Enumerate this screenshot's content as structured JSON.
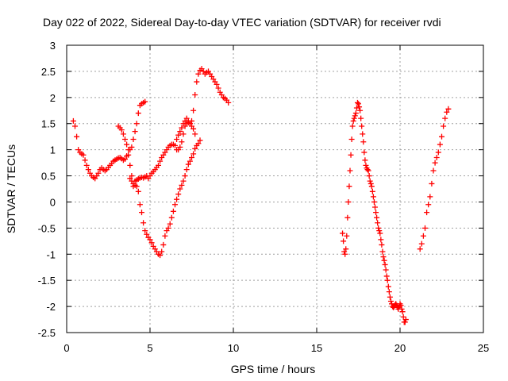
{
  "chart_data": {
    "type": "scatter",
    "title": "Day 022 of 2022, Sidereal Day-to-day VTEC variation (SDTVAR) for receiver rvdi",
    "xlabel": "GPS time / hours",
    "ylabel": "SDTVAR / TECUs",
    "xlim": [
      0,
      25
    ],
    "ylim": [
      -2.5,
      3
    ],
    "xticks": [
      "0",
      "5",
      "10",
      "15",
      "20",
      "25"
    ],
    "yticks": [
      "3",
      "2.5",
      "2",
      "1.5",
      "1",
      "0.5",
      "0",
      "-0.5",
      "-1",
      "-1.5",
      "-2",
      "-2.5"
    ],
    "grid": true,
    "marker": "plus",
    "color": "#ff0000",
    "series": [
      {
        "points": [
          [
            0.4,
            1.55
          ],
          [
            0.5,
            1.45
          ],
          [
            0.6,
            1.25
          ],
          [
            0.7,
            1.0
          ],
          [
            0.8,
            0.95
          ],
          [
            0.9,
            0.92
          ],
          [
            1.0,
            0.9
          ],
          [
            1.1,
            0.8
          ],
          [
            1.2,
            0.7
          ],
          [
            1.3,
            0.62
          ],
          [
            1.4,
            0.55
          ],
          [
            1.5,
            0.5
          ],
          [
            1.6,
            0.47
          ],
          [
            1.7,
            0.45
          ],
          [
            1.8,
            0.5
          ],
          [
            1.9,
            0.55
          ],
          [
            2.0,
            0.62
          ],
          [
            2.1,
            0.65
          ],
          [
            2.2,
            0.62
          ],
          [
            2.3,
            0.6
          ],
          [
            2.4,
            0.62
          ],
          [
            2.5,
            0.66
          ],
          [
            2.6,
            0.7
          ],
          [
            2.7,
            0.74
          ],
          [
            2.8,
            0.78
          ],
          [
            2.9,
            0.8
          ],
          [
            3.0,
            0.82
          ],
          [
            3.1,
            0.84
          ],
          [
            3.2,
            0.85
          ],
          [
            3.3,
            0.83
          ],
          [
            3.4,
            0.8
          ],
          [
            3.5,
            0.82
          ],
          [
            3.6,
            0.88
          ],
          [
            3.7,
            0.9
          ],
          [
            3.8,
            0.7
          ],
          [
            3.9,
            0.5
          ],
          [
            4.0,
            0.3
          ],
          [
            4.1,
            0.4
          ],
          [
            4.2,
            0.42
          ],
          [
            4.3,
            0.44
          ],
          [
            4.4,
            0.46
          ],
          [
            4.5,
            0.47
          ],
          [
            4.6,
            0.46
          ],
          [
            4.7,
            0.48
          ],
          [
            4.8,
            0.5
          ],
          [
            4.9,
            0.45
          ],
          [
            5.0,
            0.5
          ],
          [
            5.1,
            0.55
          ],
          [
            5.2,
            0.58
          ],
          [
            5.3,
            0.62
          ],
          [
            5.4,
            0.66
          ],
          [
            5.5,
            0.7
          ],
          [
            5.6,
            0.78
          ],
          [
            5.7,
            0.85
          ],
          [
            5.8,
            0.9
          ],
          [
            5.9,
            0.95
          ],
          [
            6.0,
            1.0
          ],
          [
            6.1,
            1.05
          ],
          [
            6.2,
            1.08
          ],
          [
            6.3,
            1.1
          ],
          [
            6.4,
            1.1
          ],
          [
            6.5,
            1.08
          ],
          [
            6.6,
            1.0
          ],
          [
            6.7,
            1.0
          ],
          [
            6.8,
            1.05
          ],
          [
            6.9,
            1.15
          ],
          [
            7.0,
            1.3
          ],
          [
            7.1,
            1.45
          ],
          [
            7.2,
            1.5
          ],
          [
            7.3,
            1.52
          ],
          [
            7.4,
            1.5
          ],
          [
            7.5,
            1.55
          ],
          [
            7.6,
            1.75
          ],
          [
            7.7,
            2.05
          ],
          [
            7.8,
            2.3
          ],
          [
            7.9,
            2.45
          ],
          [
            8.0,
            2.52
          ],
          [
            8.1,
            2.55
          ],
          [
            8.2,
            2.5
          ],
          [
            8.3,
            2.45
          ],
          [
            8.4,
            2.48
          ],
          [
            8.5,
            2.5
          ],
          [
            8.6,
            2.45
          ],
          [
            8.7,
            2.4
          ],
          [
            8.8,
            2.35
          ],
          [
            8.9,
            2.3
          ],
          [
            9.0,
            2.25
          ],
          [
            9.1,
            2.18
          ],
          [
            9.2,
            2.1
          ],
          [
            9.3,
            2.05
          ],
          [
            9.4,
            2.0
          ],
          [
            9.5,
            1.98
          ],
          [
            9.6,
            1.95
          ],
          [
            9.7,
            1.9
          ]
        ]
      },
      {
        "points": [
          [
            3.1,
            1.45
          ],
          [
            3.2,
            1.42
          ],
          [
            3.3,
            1.38
          ],
          [
            3.4,
            1.3
          ],
          [
            3.5,
            1.2
          ],
          [
            3.6,
            1.1
          ],
          [
            3.7,
            1.0
          ],
          [
            3.8,
            1.0
          ],
          [
            3.9,
            1.05
          ],
          [
            4.0,
            1.2
          ],
          [
            4.1,
            1.35
          ],
          [
            4.2,
            1.5
          ],
          [
            4.3,
            1.7
          ],
          [
            4.4,
            1.85
          ],
          [
            4.5,
            1.88
          ],
          [
            4.6,
            1.9
          ],
          [
            4.7,
            1.92
          ]
        ]
      },
      {
        "points": [
          [
            3.8,
            0.45
          ],
          [
            3.9,
            0.4
          ],
          [
            4.0,
            0.35
          ],
          [
            4.1,
            0.32
          ],
          [
            4.2,
            0.3
          ],
          [
            4.3,
            0.2
          ],
          [
            4.4,
            -0.05
          ],
          [
            4.5,
            -0.2
          ],
          [
            4.6,
            -0.4
          ],
          [
            4.7,
            -0.55
          ],
          [
            4.8,
            -0.62
          ],
          [
            4.9,
            -0.68
          ],
          [
            5.0,
            -0.72
          ],
          [
            5.1,
            -0.78
          ],
          [
            5.2,
            -0.85
          ],
          [
            5.3,
            -0.9
          ],
          [
            5.4,
            -0.95
          ],
          [
            5.5,
            -1.0
          ],
          [
            5.6,
            -1.02
          ],
          [
            5.7,
            -0.95
          ],
          [
            5.8,
            -0.82
          ],
          [
            5.9,
            -0.65
          ],
          [
            6.0,
            -0.55
          ],
          [
            6.1,
            -0.5
          ],
          [
            6.2,
            -0.42
          ],
          [
            6.3,
            -0.3
          ],
          [
            6.4,
            -0.18
          ],
          [
            6.5,
            -0.05
          ],
          [
            6.6,
            0.05
          ],
          [
            6.7,
            0.15
          ],
          [
            6.8,
            0.25
          ],
          [
            6.9,
            0.32
          ],
          [
            7.0,
            0.4
          ],
          [
            7.1,
            0.5
          ],
          [
            7.2,
            0.62
          ],
          [
            7.3,
            0.72
          ],
          [
            7.4,
            0.78
          ],
          [
            7.5,
            0.85
          ],
          [
            7.6,
            0.92
          ],
          [
            7.7,
            1.02
          ],
          [
            7.8,
            1.08
          ],
          [
            7.9,
            1.12
          ],
          [
            8.0,
            1.18
          ]
        ]
      },
      {
        "points": [
          [
            6.6,
            1.2
          ],
          [
            6.7,
            1.28
          ],
          [
            6.8,
            1.35
          ],
          [
            6.9,
            1.42
          ],
          [
            7.0,
            1.5
          ],
          [
            7.1,
            1.55
          ],
          [
            7.2,
            1.6
          ],
          [
            7.3,
            1.55
          ],
          [
            7.4,
            1.5
          ],
          [
            7.5,
            1.45
          ],
          [
            7.6,
            1.4
          ],
          [
            7.7,
            1.3
          ]
        ]
      },
      {
        "points": [
          [
            16.55,
            -0.6
          ],
          [
            16.6,
            -0.75
          ],
          [
            16.65,
            -0.95
          ],
          [
            16.7,
            -1.0
          ],
          [
            16.75,
            -0.9
          ],
          [
            16.8,
            -0.65
          ],
          [
            16.85,
            -0.3
          ],
          [
            16.9,
            0.0
          ],
          [
            16.95,
            0.3
          ],
          [
            17.0,
            0.6
          ],
          [
            17.05,
            0.9
          ],
          [
            17.1,
            1.2
          ],
          [
            17.15,
            1.45
          ],
          [
            17.2,
            1.55
          ],
          [
            17.25,
            1.6
          ],
          [
            17.3,
            1.65
          ],
          [
            17.35,
            1.7
          ],
          [
            17.4,
            1.8
          ],
          [
            17.45,
            1.9
          ],
          [
            17.5,
            1.88
          ],
          [
            17.55,
            1.82
          ],
          [
            17.6,
            1.75
          ],
          [
            17.65,
            1.6
          ],
          [
            17.7,
            1.45
          ],
          [
            17.75,
            1.3
          ],
          [
            17.8,
            1.15
          ],
          [
            17.85,
            0.95
          ],
          [
            17.9,
            0.8
          ],
          [
            17.95,
            0.7
          ],
          [
            18.0,
            0.65
          ],
          [
            18.05,
            0.62
          ],
          [
            18.1,
            0.6
          ],
          [
            18.15,
            0.5
          ],
          [
            18.2,
            0.4
          ],
          [
            18.25,
            0.35
          ],
          [
            18.3,
            0.3
          ],
          [
            18.35,
            0.2
          ],
          [
            18.4,
            0.1
          ],
          [
            18.45,
            0.0
          ],
          [
            18.5,
            -0.1
          ],
          [
            18.55,
            -0.2
          ],
          [
            18.6,
            -0.3
          ],
          [
            18.65,
            -0.4
          ],
          [
            18.7,
            -0.5
          ],
          [
            18.75,
            -0.55
          ],
          [
            18.8,
            -0.6
          ],
          [
            18.85,
            -0.72
          ],
          [
            18.9,
            -0.82
          ],
          [
            18.95,
            -0.95
          ],
          [
            19.0,
            -1.05
          ],
          [
            19.05,
            -1.12
          ],
          [
            19.1,
            -1.2
          ],
          [
            19.15,
            -1.3
          ],
          [
            19.2,
            -1.42
          ],
          [
            19.25,
            -1.5
          ],
          [
            19.3,
            -1.62
          ],
          [
            19.35,
            -1.72
          ],
          [
            19.4,
            -1.82
          ],
          [
            19.45,
            -1.9
          ],
          [
            19.5,
            -1.95
          ],
          [
            19.55,
            -2.0
          ],
          [
            19.6,
            -2.02
          ],
          [
            19.65,
            -2.0
          ],
          [
            19.7,
            -1.97
          ],
          [
            19.75,
            -1.95
          ],
          [
            19.8,
            -1.98
          ],
          [
            19.85,
            -2.02
          ],
          [
            19.9,
            -2.05
          ],
          [
            19.95,
            -2.0
          ],
          [
            20.0,
            -1.95
          ],
          [
            20.05,
            -1.98
          ],
          [
            20.1,
            -2.05
          ],
          [
            20.15,
            -2.1
          ],
          [
            20.2,
            -2.2
          ],
          [
            20.25,
            -2.3
          ],
          [
            20.3,
            -2.3
          ],
          [
            20.35,
            -2.25
          ]
        ]
      },
      {
        "points": [
          [
            21.2,
            -0.9
          ],
          [
            21.3,
            -0.8
          ],
          [
            21.4,
            -0.65
          ],
          [
            21.5,
            -0.5
          ],
          [
            21.6,
            -0.2
          ],
          [
            21.7,
            -0.05
          ],
          [
            21.8,
            0.1
          ],
          [
            21.9,
            0.35
          ],
          [
            22.0,
            0.6
          ],
          [
            22.1,
            0.75
          ],
          [
            22.2,
            0.85
          ],
          [
            22.3,
            0.95
          ],
          [
            22.4,
            1.1
          ],
          [
            22.5,
            1.25
          ],
          [
            22.6,
            1.45
          ],
          [
            22.7,
            1.6
          ],
          [
            22.8,
            1.72
          ],
          [
            22.9,
            1.78
          ]
        ]
      }
    ]
  }
}
